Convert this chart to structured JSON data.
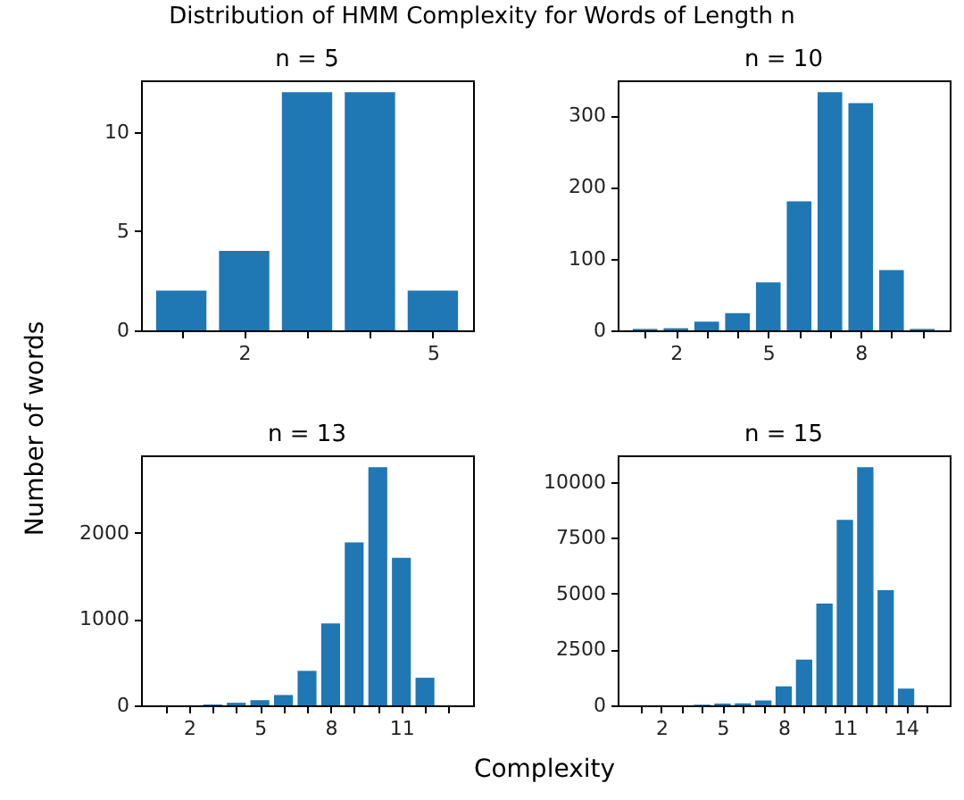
{
  "chart_data": [
    {
      "type": "bar",
      "title": "n = 5",
      "x": [
        1,
        2,
        3,
        4,
        5
      ],
      "values": [
        2,
        4,
        12,
        12,
        2
      ],
      "color": "#1f77b4",
      "xlim": [
        0.36,
        5.64
      ],
      "xticks": [
        {
          "value": 1,
          "label": null
        },
        2,
        {
          "value": 3,
          "label": null
        },
        {
          "value": 4,
          "label": null
        },
        5
      ],
      "ylim": [
        0,
        12.6
      ],
      "yticks": [
        0,
        5,
        10
      ]
    },
    {
      "type": "bar",
      "title": "n = 10",
      "x": [
        1,
        2,
        3,
        4,
        5,
        6,
        7,
        8,
        9,
        10
      ],
      "values": [
        2,
        3,
        12,
        24,
        67,
        180,
        332,
        317,
        84,
        2
      ],
      "color": "#1f77b4",
      "xlim": [
        0.11,
        10.89
      ],
      "xticks": [
        {
          "value": 1,
          "label": null
        },
        2,
        {
          "value": 3,
          "label": null
        },
        {
          "value": 4,
          "label": null
        },
        5,
        {
          "value": 6,
          "label": null
        },
        {
          "value": 7,
          "label": null
        },
        8,
        {
          "value": 9,
          "label": null
        },
        {
          "value": 10,
          "label": null
        }
      ],
      "ylim": [
        0,
        348.6
      ],
      "yticks": [
        0,
        100,
        200,
        300
      ]
    },
    {
      "type": "bar",
      "title": "n = 13",
      "x": [
        1,
        2,
        3,
        4,
        5,
        6,
        7,
        8,
        9,
        10,
        11,
        12,
        13
      ],
      "values": [
        0,
        0,
        10,
        30,
        60,
        120,
        400,
        950,
        1890,
        2760,
        1710,
        320,
        0
      ],
      "color": "#1f77b4",
      "xlim": [
        -0.04,
        14.04
      ],
      "xticks": [
        {
          "value": 1,
          "label": null
        },
        2,
        {
          "value": 3,
          "label": null
        },
        {
          "value": 4,
          "label": null
        },
        5,
        {
          "value": 6,
          "label": null
        },
        {
          "value": 7,
          "label": null
        },
        8,
        {
          "value": 9,
          "label": null
        },
        {
          "value": 10,
          "label": null
        },
        11,
        {
          "value": 12,
          "label": null
        },
        {
          "value": 13,
          "label": null
        }
      ],
      "ylim": [
        0,
        2898
      ],
      "yticks": [
        0,
        1000,
        2000
      ]
    },
    {
      "type": "bar",
      "title": "n = 15",
      "x": [
        1,
        2,
        3,
        4,
        5,
        6,
        7,
        8,
        9,
        10,
        11,
        12,
        13,
        14,
        15
      ],
      "values": [
        0,
        0,
        0,
        30,
        80,
        90,
        220,
        850,
        2050,
        4550,
        8300,
        10650,
        5150,
        750,
        0
      ],
      "color": "#1f77b4",
      "xlim": [
        -0.14,
        16.14
      ],
      "xticks": [
        {
          "value": 1,
          "label": null
        },
        2,
        {
          "value": 3,
          "label": null
        },
        {
          "value": 4,
          "label": null
        },
        5,
        {
          "value": 6,
          "label": null
        },
        {
          "value": 7,
          "label": null
        },
        8,
        {
          "value": 9,
          "label": null
        },
        {
          "value": 10,
          "label": null
        },
        11,
        {
          "value": 12,
          "label": null
        },
        {
          "value": 13,
          "label": null
        },
        14,
        {
          "value": 15,
          "label": null
        }
      ],
      "ylim": [
        0,
        11182
      ],
      "yticks": [
        0,
        2500,
        5000,
        7500,
        10000
      ]
    },
    {
      "type": "other",
      "title": "Distribution of HMM Complexity for Words of Length n",
      "xlabel": "Complexity",
      "ylabel": "Number of words"
    }
  ]
}
